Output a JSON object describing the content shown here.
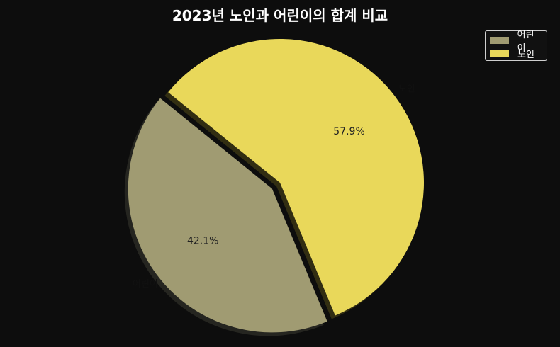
{
  "chart_data": {
    "type": "pie",
    "title": "2023년 노인과 어린이의 합계 비교",
    "slices": [
      {
        "label": "어린이",
        "pct_label": "42.1%",
        "value": 42.1,
        "color": "#a09b72"
      },
      {
        "label": "노인",
        "pct_label": "57.9%",
        "value": 57.9,
        "color": "#e9d85a"
      }
    ],
    "legend": {
      "position": "top-right",
      "entries": [
        "어린이",
        "노인"
      ]
    },
    "background_color": "#0d0d0d",
    "shadow": true,
    "exploded": true
  }
}
